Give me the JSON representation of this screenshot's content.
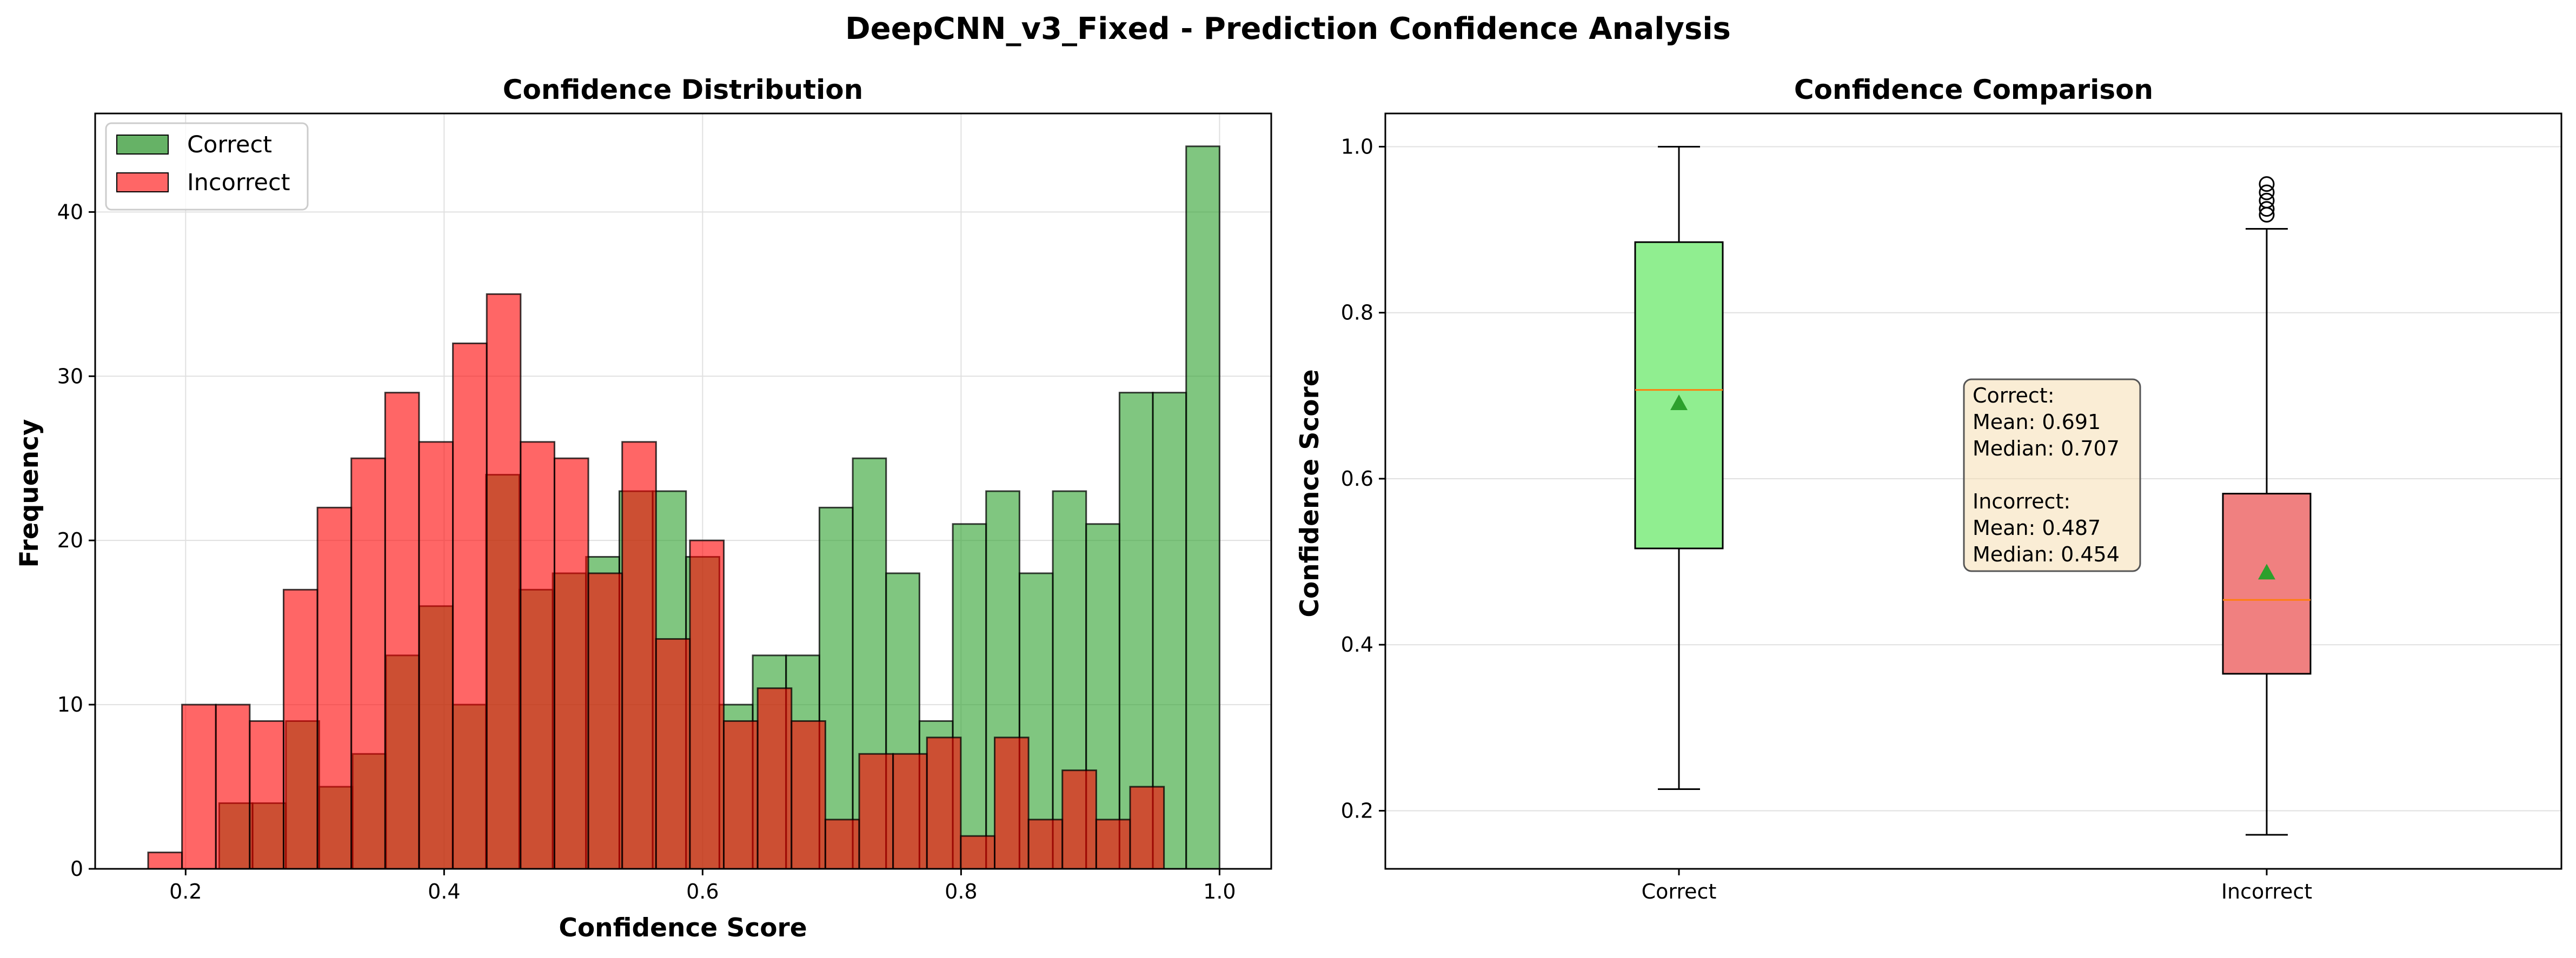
{
  "figure": {
    "title": "DeepCNN_v3_Fixed - Prediction Confidence Analysis"
  },
  "chart_data": [
    {
      "type": "bar",
      "subtype": "histogram",
      "title": "Confidence Distribution",
      "xlabel": "Confidence Score",
      "ylabel": "Frequency",
      "xlim": [
        0.13,
        1.04
      ],
      "ylim": [
        0,
        46
      ],
      "xticks": [
        0.2,
        0.4,
        0.6,
        0.8,
        1.0
      ],
      "xtick_labels": [
        "0.2",
        "0.4",
        "0.6",
        "0.8",
        "1.0"
      ],
      "yticks": [
        0,
        10,
        20,
        30,
        40
      ],
      "ytick_labels": [
        "0",
        "10",
        "20",
        "30",
        "40"
      ],
      "grid": true,
      "legend_position": "upper-left",
      "series": [
        {
          "name": "Correct",
          "color": "#2ca02c",
          "fill": "#66b266",
          "bin_start": 0.226,
          "bin_width": 0.0258,
          "values": [
            4,
            4,
            9,
            5,
            7,
            13,
            16,
            10,
            24,
            17,
            18,
            19,
            23,
            23,
            19,
            10,
            13,
            13,
            22,
            25,
            18,
            9,
            21,
            23,
            18,
            23,
            21,
            29,
            29,
            44
          ]
        },
        {
          "name": "Incorrect",
          "color": "#ff0000",
          "fill": "#ff6666",
          "bin_start": 0.171,
          "bin_width": 0.0262,
          "values": [
            1,
            10,
            10,
            9,
            17,
            22,
            25,
            29,
            26,
            32,
            35,
            26,
            25,
            18,
            26,
            14,
            20,
            9,
            11,
            9,
            3,
            7,
            7,
            8,
            2,
            8,
            3,
            6,
            3,
            5
          ]
        }
      ]
    },
    {
      "type": "box",
      "title": "Confidence Comparison",
      "xlabel": "",
      "ylabel": "Confidence Score",
      "categories": [
        "Correct",
        "Incorrect"
      ],
      "ylim": [
        0.13,
        1.04
      ],
      "yticks": [
        0.2,
        0.4,
        0.6,
        0.8,
        1.0
      ],
      "ytick_labels": [
        "0.2",
        "0.4",
        "0.6",
        "0.8",
        "1.0"
      ],
      "grid": "y",
      "boxes": [
        {
          "name": "Correct",
          "whisker_low": 0.226,
          "q1": 0.516,
          "median": 0.707,
          "q3": 0.885,
          "whisker_high": 1.0,
          "mean": 0.691,
          "outliers": [],
          "color": "#90ee90"
        },
        {
          "name": "Incorrect",
          "whisker_low": 0.171,
          "q1": 0.365,
          "median": 0.454,
          "q3": 0.582,
          "whisker_high": 0.901,
          "mean": 0.487,
          "outliers": [
            0.918,
            0.925,
            0.935,
            0.945,
            0.955
          ],
          "color": "#f08080"
        }
      ],
      "median_color": "#ff7f0e",
      "mean_marker_color": "#2ca02c",
      "annotation": {
        "lines": [
          "Correct:",
          "Mean: 0.691",
          "Median: 0.707",
          "",
          "Incorrect:",
          "Mean: 0.487",
          "Median: 0.454"
        ],
        "background": "#f5deb3"
      }
    }
  ]
}
